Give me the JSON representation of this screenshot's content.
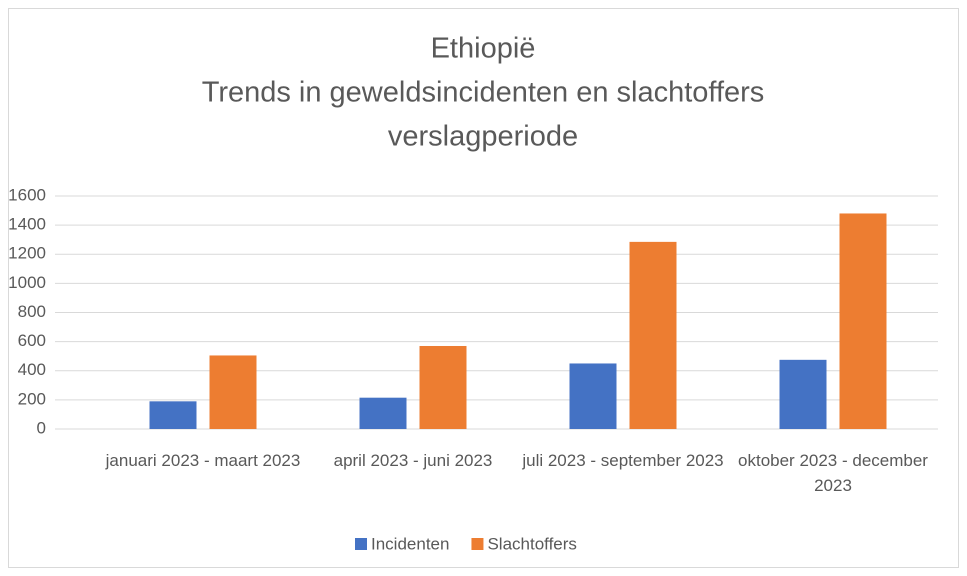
{
  "chart_data": {
    "type": "bar",
    "title": [
      "Ethiopië",
      "Trends in geweldsincidenten en slachtoffers",
      "verslagperiode"
    ],
    "categories": [
      "januari 2023 - maart 2023",
      "april 2023 - juni 2023",
      "juli 2023 - september 2023",
      "oktober 2023 - december 2023"
    ],
    "series": [
      {
        "name": "Incidenten",
        "color": "#4472c4",
        "values": [
          190,
          215,
          450,
          475
        ]
      },
      {
        "name": "Slachtoffers",
        "color": "#ed7d31",
        "values": [
          505,
          570,
          1285,
          1480
        ]
      }
    ],
    "ylim": [
      0,
      1600
    ],
    "yticks": [
      0,
      200,
      400,
      600,
      800,
      1000,
      1200,
      1400,
      1600
    ],
    "grid": true,
    "legend": "bottom"
  }
}
